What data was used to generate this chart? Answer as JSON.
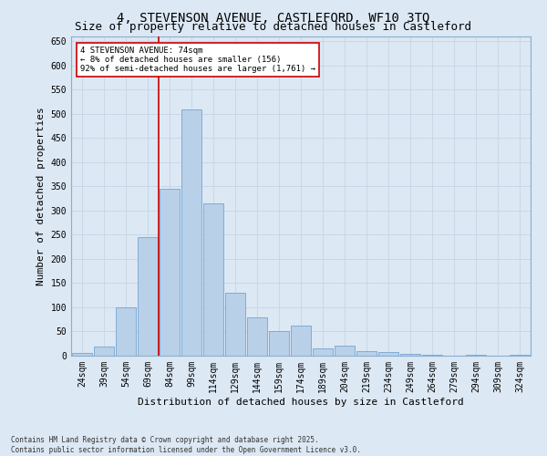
{
  "title_line1": "4, STEVENSON AVENUE, CASTLEFORD, WF10 3TQ",
  "title_line2": "Size of property relative to detached houses in Castleford",
  "xlabel": "Distribution of detached houses by size in Castleford",
  "ylabel": "Number of detached properties",
  "footnote": "Contains HM Land Registry data © Crown copyright and database right 2025.\nContains public sector information licensed under the Open Government Licence v3.0.",
  "categories": [
    "24sqm",
    "39sqm",
    "54sqm",
    "69sqm",
    "84sqm",
    "99sqm",
    "114sqm",
    "129sqm",
    "144sqm",
    "159sqm",
    "174sqm",
    "189sqm",
    "204sqm",
    "219sqm",
    "234sqm",
    "249sqm",
    "264sqm",
    "279sqm",
    "294sqm",
    "309sqm",
    "324sqm"
  ],
  "values": [
    5,
    18,
    100,
    245,
    345,
    510,
    315,
    130,
    80,
    50,
    62,
    15,
    20,
    10,
    8,
    3,
    2,
    0,
    2,
    0,
    2
  ],
  "bar_color": "#b8d0e8",
  "bar_edge_color": "#6699cc",
  "grid_color": "#c8d8e8",
  "background_color": "#dce8f4",
  "annotation_text": "4 STEVENSON AVENUE: 74sqm\n← 8% of detached houses are smaller (156)\n92% of semi-detached houses are larger (1,761) →",
  "annotation_box_color": "#ffffff",
  "annotation_border_color": "#cc0000",
  "ylim": [
    0,
    660
  ],
  "yticks": [
    0,
    50,
    100,
    150,
    200,
    250,
    300,
    350,
    400,
    450,
    500,
    550,
    600,
    650
  ],
  "red_line_color": "#cc0000",
  "title_fontsize": 10,
  "subtitle_fontsize": 9,
  "axis_label_fontsize": 8,
  "tick_fontsize": 7,
  "footnote_fontsize": 5.5
}
